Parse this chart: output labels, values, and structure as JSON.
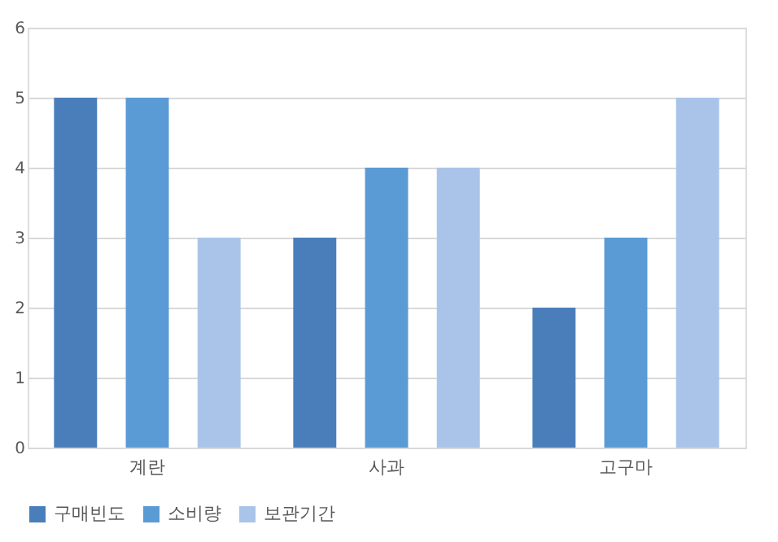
{
  "chart_data": {
    "type": "bar",
    "categories": [
      "계란",
      "사과",
      "고구마"
    ],
    "series": [
      {
        "name": "구매빈도",
        "color": "#4a7ebb",
        "values": [
          5,
          3,
          2
        ]
      },
      {
        "name": "소비량",
        "color": "#5b9bd5",
        "values": [
          5,
          4,
          3
        ]
      },
      {
        "name": "보관기간",
        "color": "#a9c4e8",
        "values": [
          3,
          4,
          5
        ]
      }
    ],
    "ylim": [
      0,
      6
    ],
    "yticks": [
      0,
      1,
      2,
      3,
      4,
      5,
      6
    ],
    "grid": "y",
    "legend": "bottom"
  }
}
